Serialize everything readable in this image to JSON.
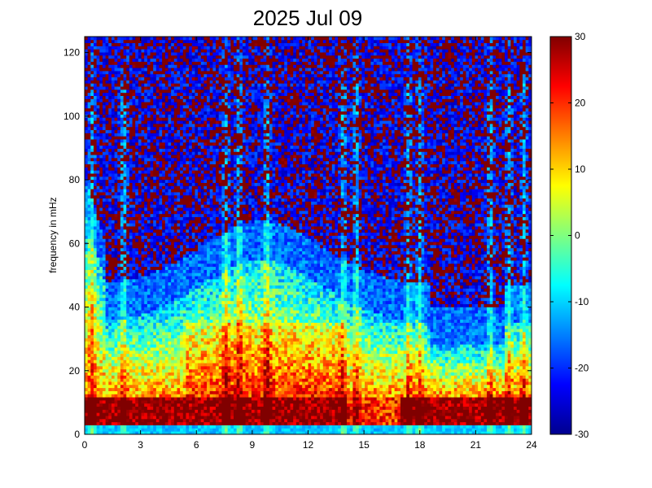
{
  "chart_data": {
    "type": "heatmap",
    "title": "2025 Jul 09",
    "xlabel": "",
    "ylabel": "frequency in mHz",
    "xlim": [
      0,
      24
    ],
    "ylim": [
      0,
      125
    ],
    "x_ticks": [
      "0",
      "3",
      "6",
      "9",
      "12",
      "15",
      "18",
      "21",
      "24"
    ],
    "x_tick_values": [
      0,
      3,
      6,
      9,
      12,
      15,
      18,
      21,
      24
    ],
    "y_ticks": [
      "0",
      "20",
      "40",
      "60",
      "80",
      "100",
      "120"
    ],
    "y_tick_values": [
      0,
      20,
      40,
      60,
      80,
      100,
      120
    ],
    "colorbar": {
      "colormap": "jet",
      "clim": [
        -30,
        30
      ],
      "ticks": [
        "30",
        "20",
        "10",
        "0",
        "-10",
        "-20",
        "-30"
      ],
      "tick_values": [
        30,
        20,
        10,
        0,
        -10,
        -20,
        -30
      ]
    },
    "colors": {
      "jet_low": "#00008f",
      "jet_blue": "#0000ff",
      "jet_cyan": "#00ffff",
      "jet_yellow": "#ffff00",
      "jet_red": "#ff0000",
      "jet_high": "#800000"
    }
  }
}
